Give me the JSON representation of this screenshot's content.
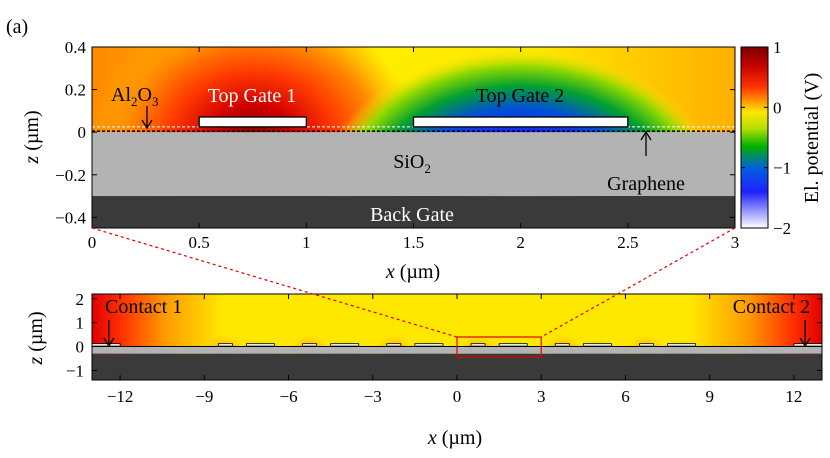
{
  "panel_label": "(a)",
  "chart_data": [
    {
      "type": "heatmap",
      "name": "zoomed potential map",
      "xlabel_var": "x",
      "xlabel_unit": " (µm)",
      "ylabel_var": "z",
      "ylabel_unit": " (µm)",
      "xlim": [
        0,
        3
      ],
      "ylim": [
        -0.45,
        0.4
      ],
      "xticks": [
        0,
        0.5,
        1,
        1.5,
        2,
        2.5,
        3
      ],
      "xtick_labels": [
        "0",
        "0.5",
        "1",
        "1.5",
        "2",
        "2.5",
        "3"
      ],
      "yticks": [
        -0.4,
        -0.2,
        0,
        0.2,
        0.4
      ],
      "ytick_labels": [
        "−0.4",
        "−0.2",
        "0",
        "0.2",
        "0.4"
      ],
      "regions": [
        {
          "name": "SiO₂",
          "z_range": [
            -0.3,
            0
          ],
          "color": "#b3b3b3"
        },
        {
          "name": "Back Gate",
          "z_range": [
            -0.45,
            -0.3
          ],
          "color": "#3a3a3a"
        }
      ],
      "gates": [
        {
          "name": "Top Gate 1",
          "x_range": [
            0.5,
            1.0
          ],
          "z_range": [
            0.025,
            0.09
          ],
          "potential_V": 1
        },
        {
          "name": "Top Gate 2",
          "x_range": [
            1.5,
            2.5
          ],
          "z_range": [
            0.025,
            0.09
          ],
          "potential_V": -2
        }
      ],
      "graphene_z": 0,
      "oxide_top_z": 0.025,
      "annotations": {
        "al2o3_base": "Al",
        "al2o3_sub1": "2",
        "al2o3_mid": "O",
        "al2o3_sub2": "3",
        "top_gate_1": "Top Gate 1",
        "top_gate_2": "Top Gate 2",
        "sio2_base": "SiO",
        "sio2_sub": "2",
        "graphene": "Graphene",
        "back_gate": "Back Gate"
      },
      "colorbar": {
        "label": "El. potential (V)",
        "range": [
          -2,
          1
        ],
        "ticks": [
          1,
          0,
          -1,
          -2
        ],
        "tick_labels": [
          "1",
          "0",
          "−1",
          "−2"
        ]
      }
    },
    {
      "type": "heatmap",
      "name": "full device potential map",
      "xlabel_var": "x",
      "xlabel_unit": " (µm)",
      "ylabel_var": "z",
      "ylabel_unit": " (µm)",
      "xlim": [
        -13,
        13
      ],
      "ylim": [
        -1.4,
        2.2
      ],
      "xticks": [
        -12,
        -9,
        -6,
        -3,
        0,
        3,
        6,
        9,
        12
      ],
      "xtick_labels": [
        "−12",
        "−9",
        "−6",
        "−3",
        "0",
        "3",
        "6",
        "9",
        "12"
      ],
      "yticks": [
        -1,
        0,
        1,
        2
      ],
      "ytick_labels": [
        "−1",
        "0",
        "1",
        "2"
      ],
      "contacts": [
        {
          "name": "Contact 1",
          "x": -12.4
        },
        {
          "name": "Contact 2",
          "x": 12.4
        }
      ],
      "gate_pairs_start_x": [
        -9,
        -6,
        -3,
        0,
        3,
        6
      ],
      "zoom_box_x": [
        0,
        3
      ],
      "zoom_box_z": [
        -0.45,
        0.4
      ]
    }
  ]
}
